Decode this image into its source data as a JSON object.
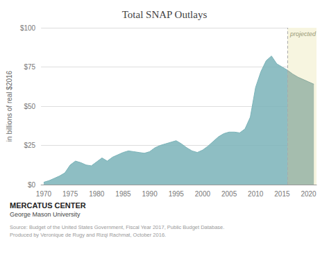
{
  "chart_data": {
    "type": "area",
    "title": "Total SNAP Outlays",
    "ylabel": "in billions of real $2016",
    "series": [
      {
        "color": "#7ab3b8",
        "x": [
          1970,
          1971,
          1972,
          1973,
          1974,
          1975,
          1976,
          1977,
          1978,
          1979,
          1980,
          1981,
          1982,
          1983,
          1984,
          1985,
          1986,
          1987,
          1988,
          1989,
          1990,
          1991,
          1992,
          1993,
          1994,
          1995,
          1996,
          1997,
          1998,
          1999,
          2000,
          2001,
          2002,
          2003,
          2004,
          2005,
          2006,
          2007,
          2008,
          2009,
          2010,
          2011,
          2012,
          2013,
          2014,
          2015,
          2016
        ],
        "values": [
          1.5,
          2.5,
          4.0,
          5.5,
          7.5,
          12.5,
          15.0,
          14.0,
          12.5,
          12.0,
          14.5,
          17.0,
          15.0,
          17.5,
          19.0,
          20.5,
          21.5,
          21.0,
          20.5,
          20.0,
          21.0,
          23.5,
          25.0,
          26.0,
          27.0,
          28.0,
          26.0,
          23.5,
          21.5,
          20.5,
          22.0,
          24.5,
          27.5,
          30.5,
          32.5,
          33.5,
          33.5,
          33.0,
          35.5,
          43.0,
          62.0,
          72.0,
          79.0,
          82.0,
          77.0,
          75.0,
          73.0
        ]
      },
      {
        "color": "#8aaa9e",
        "x": [
          2016,
          2017,
          2018,
          2019,
          2020,
          2021
        ],
        "values": [
          73.0,
          70.5,
          68.5,
          67.0,
          65.5,
          64.0
        ]
      }
    ],
    "xlim": [
      1969.5,
      2021.5
    ],
    "xticks": [
      1970,
      1975,
      1980,
      1985,
      1990,
      1995,
      2000,
      2005,
      2010,
      2015,
      2020
    ],
    "ylim": [
      0,
      100
    ],
    "yticks": [
      {
        "value": 0,
        "label": "$0"
      },
      {
        "value": 25,
        "label": "$25"
      },
      {
        "value": 50,
        "label": "$50"
      },
      {
        "value": 75,
        "label": "$75"
      },
      {
        "value": 100,
        "label": "$100"
      }
    ],
    "grid": true,
    "annotations": [
      {
        "text": "projected",
        "x": 2016,
        "color": "#f7f5e0",
        "line_color": "#aaaaaa",
        "line_style": "dashed"
      }
    ],
    "source": "Source: Budget of the United States Government, Fiscal Year 2017, Public Budget Database.\nProduced by Veronique de Rugy and Rizqi Rachmat, October 2016.",
    "footer": [
      "MERCATUS CENTER",
      "George Mason University"
    ]
  }
}
